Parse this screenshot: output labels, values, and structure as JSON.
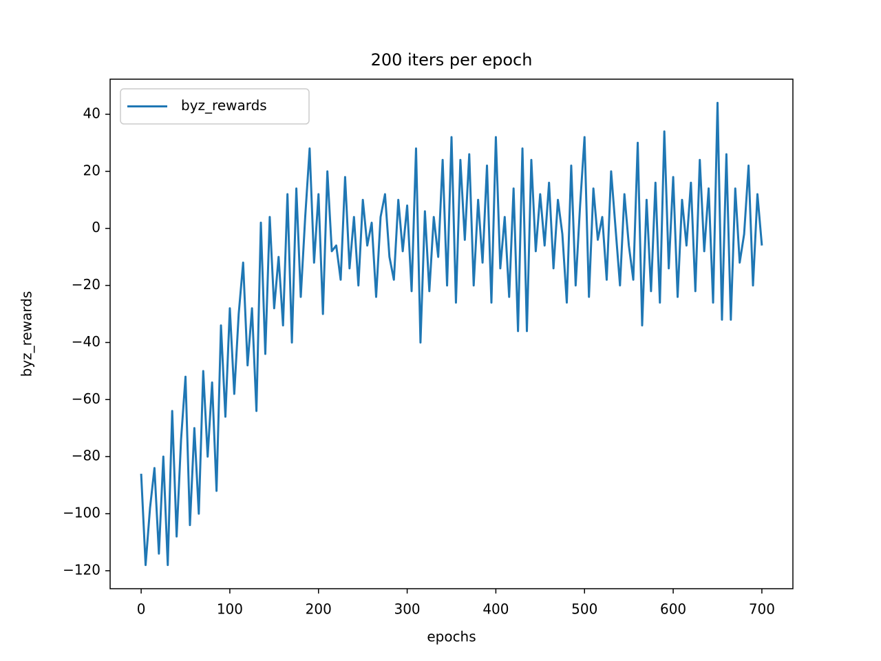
{
  "chart_data": {
    "type": "line",
    "title": "200 iters per epoch",
    "xlabel": "epochs",
    "ylabel": "byz_rewards",
    "x": [
      0,
      5,
      10,
      15,
      20,
      25,
      30,
      35,
      40,
      45,
      50,
      55,
      60,
      65,
      70,
      75,
      80,
      85,
      90,
      95,
      100,
      105,
      110,
      115,
      120,
      125,
      130,
      135,
      140,
      145,
      150,
      155,
      160,
      165,
      170,
      175,
      180,
      185,
      190,
      195,
      200,
      205,
      210,
      215,
      220,
      225,
      230,
      235,
      240,
      245,
      250,
      255,
      260,
      265,
      270,
      275,
      280,
      285,
      290,
      295,
      300,
      305,
      310,
      315,
      320,
      325,
      330,
      335,
      340,
      345,
      350,
      355,
      360,
      365,
      370,
      375,
      380,
      385,
      390,
      395,
      400,
      405,
      410,
      415,
      420,
      425,
      430,
      435,
      440,
      445,
      450,
      455,
      460,
      465,
      470,
      475,
      480,
      485,
      490,
      495,
      500,
      505,
      510,
      515,
      520,
      525,
      530,
      535,
      540,
      545,
      550,
      555,
      560,
      565,
      570,
      575,
      580,
      585,
      590,
      595,
      600,
      605,
      610,
      615,
      620,
      625,
      630,
      635,
      640,
      645,
      650,
      655,
      660,
      665,
      670,
      675,
      680,
      685,
      690,
      695,
      700
    ],
    "series": [
      {
        "name": "byz_rewards",
        "color": "#1f77b4",
        "values": [
          -86,
          -118,
          -98,
          -84,
          -114,
          -80,
          -118,
          -64,
          -108,
          -74,
          -52,
          -104,
          -70,
          -100,
          -50,
          -80,
          -54,
          -92,
          -34,
          -66,
          -28,
          -58,
          -30,
          -12,
          -48,
          -28,
          -64,
          2,
          -44,
          4,
          -28,
          -10,
          -34,
          12,
          -40,
          14,
          -24,
          4,
          28,
          -12,
          12,
          -30,
          20,
          -8,
          -6,
          -18,
          18,
          -14,
          4,
          -20,
          10,
          -6,
          2,
          -24,
          4,
          12,
          -10,
          -18,
          10,
          -8,
          8,
          -22,
          28,
          -40,
          6,
          -22,
          4,
          -10,
          24,
          -20,
          32,
          -26,
          24,
          -4,
          26,
          -20,
          10,
          -12,
          22,
          -26,
          32,
          -14,
          4,
          -24,
          14,
          -36,
          28,
          -36,
          24,
          -8,
          12,
          -6,
          16,
          -14,
          10,
          -2,
          -26,
          22,
          -20,
          8,
          32,
          -24,
          14,
          -4,
          4,
          -18,
          20,
          0,
          -20,
          12,
          -6,
          -18,
          30,
          -34,
          10,
          -22,
          16,
          -26,
          34,
          -14,
          18,
          -24,
          10,
          -6,
          16,
          -22,
          24,
          -8,
          14,
          -26,
          44,
          -32,
          26,
          -32,
          14,
          -12,
          -2,
          22,
          -20,
          12,
          -6
        ]
      }
    ],
    "xlim": [
      -35,
      735
    ],
    "ylim": [
      -126.3,
      52.3
    ],
    "xticks": [
      0,
      100,
      200,
      300,
      400,
      500,
      600,
      700
    ],
    "yticks": [
      {
        "value": -120,
        "label": "−120"
      },
      {
        "value": -100,
        "label": "−100"
      },
      {
        "value": -80,
        "label": "−80"
      },
      {
        "value": -60,
        "label": "−60"
      },
      {
        "value": -40,
        "label": "−40"
      },
      {
        "value": -20,
        "label": "−20"
      },
      0,
      20,
      40
    ],
    "legend": "upper left"
  }
}
